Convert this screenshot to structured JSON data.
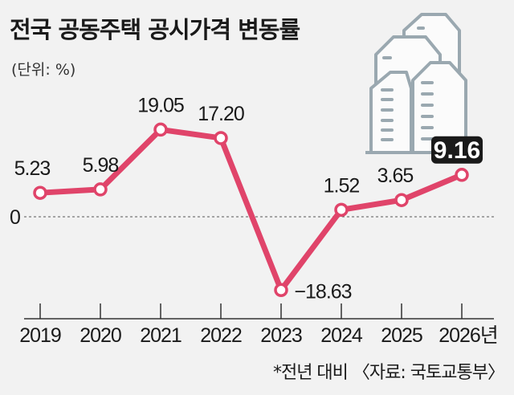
{
  "chart_data": {
    "type": "line",
    "title": "전국 공동주택 공시가격 변동률",
    "unit_label": "(단위: %)",
    "categories": [
      "2019",
      "2020",
      "2021",
      "2022",
      "2023",
      "2024",
      "2025",
      "2026년"
    ],
    "values": [
      5.23,
      5.98,
      19.05,
      17.2,
      -18.63,
      1.52,
      3.65,
      9.16
    ],
    "value_labels": [
      "5.23",
      "5.98",
      "19.05",
      "17.20",
      "−18.63",
      "1.52",
      "3.65",
      "9.16"
    ],
    "zero_label": "0",
    "highlighted_index": 7,
    "xlabel": "",
    "ylabel": "",
    "footnote": "*전년 대비 〈자료: 국토교통부〉",
    "colors": {
      "line": "#e0446a",
      "background": "#f2f2f2",
      "highlight_box": "#1a1a1a",
      "building": "#9aa8b0"
    }
  }
}
